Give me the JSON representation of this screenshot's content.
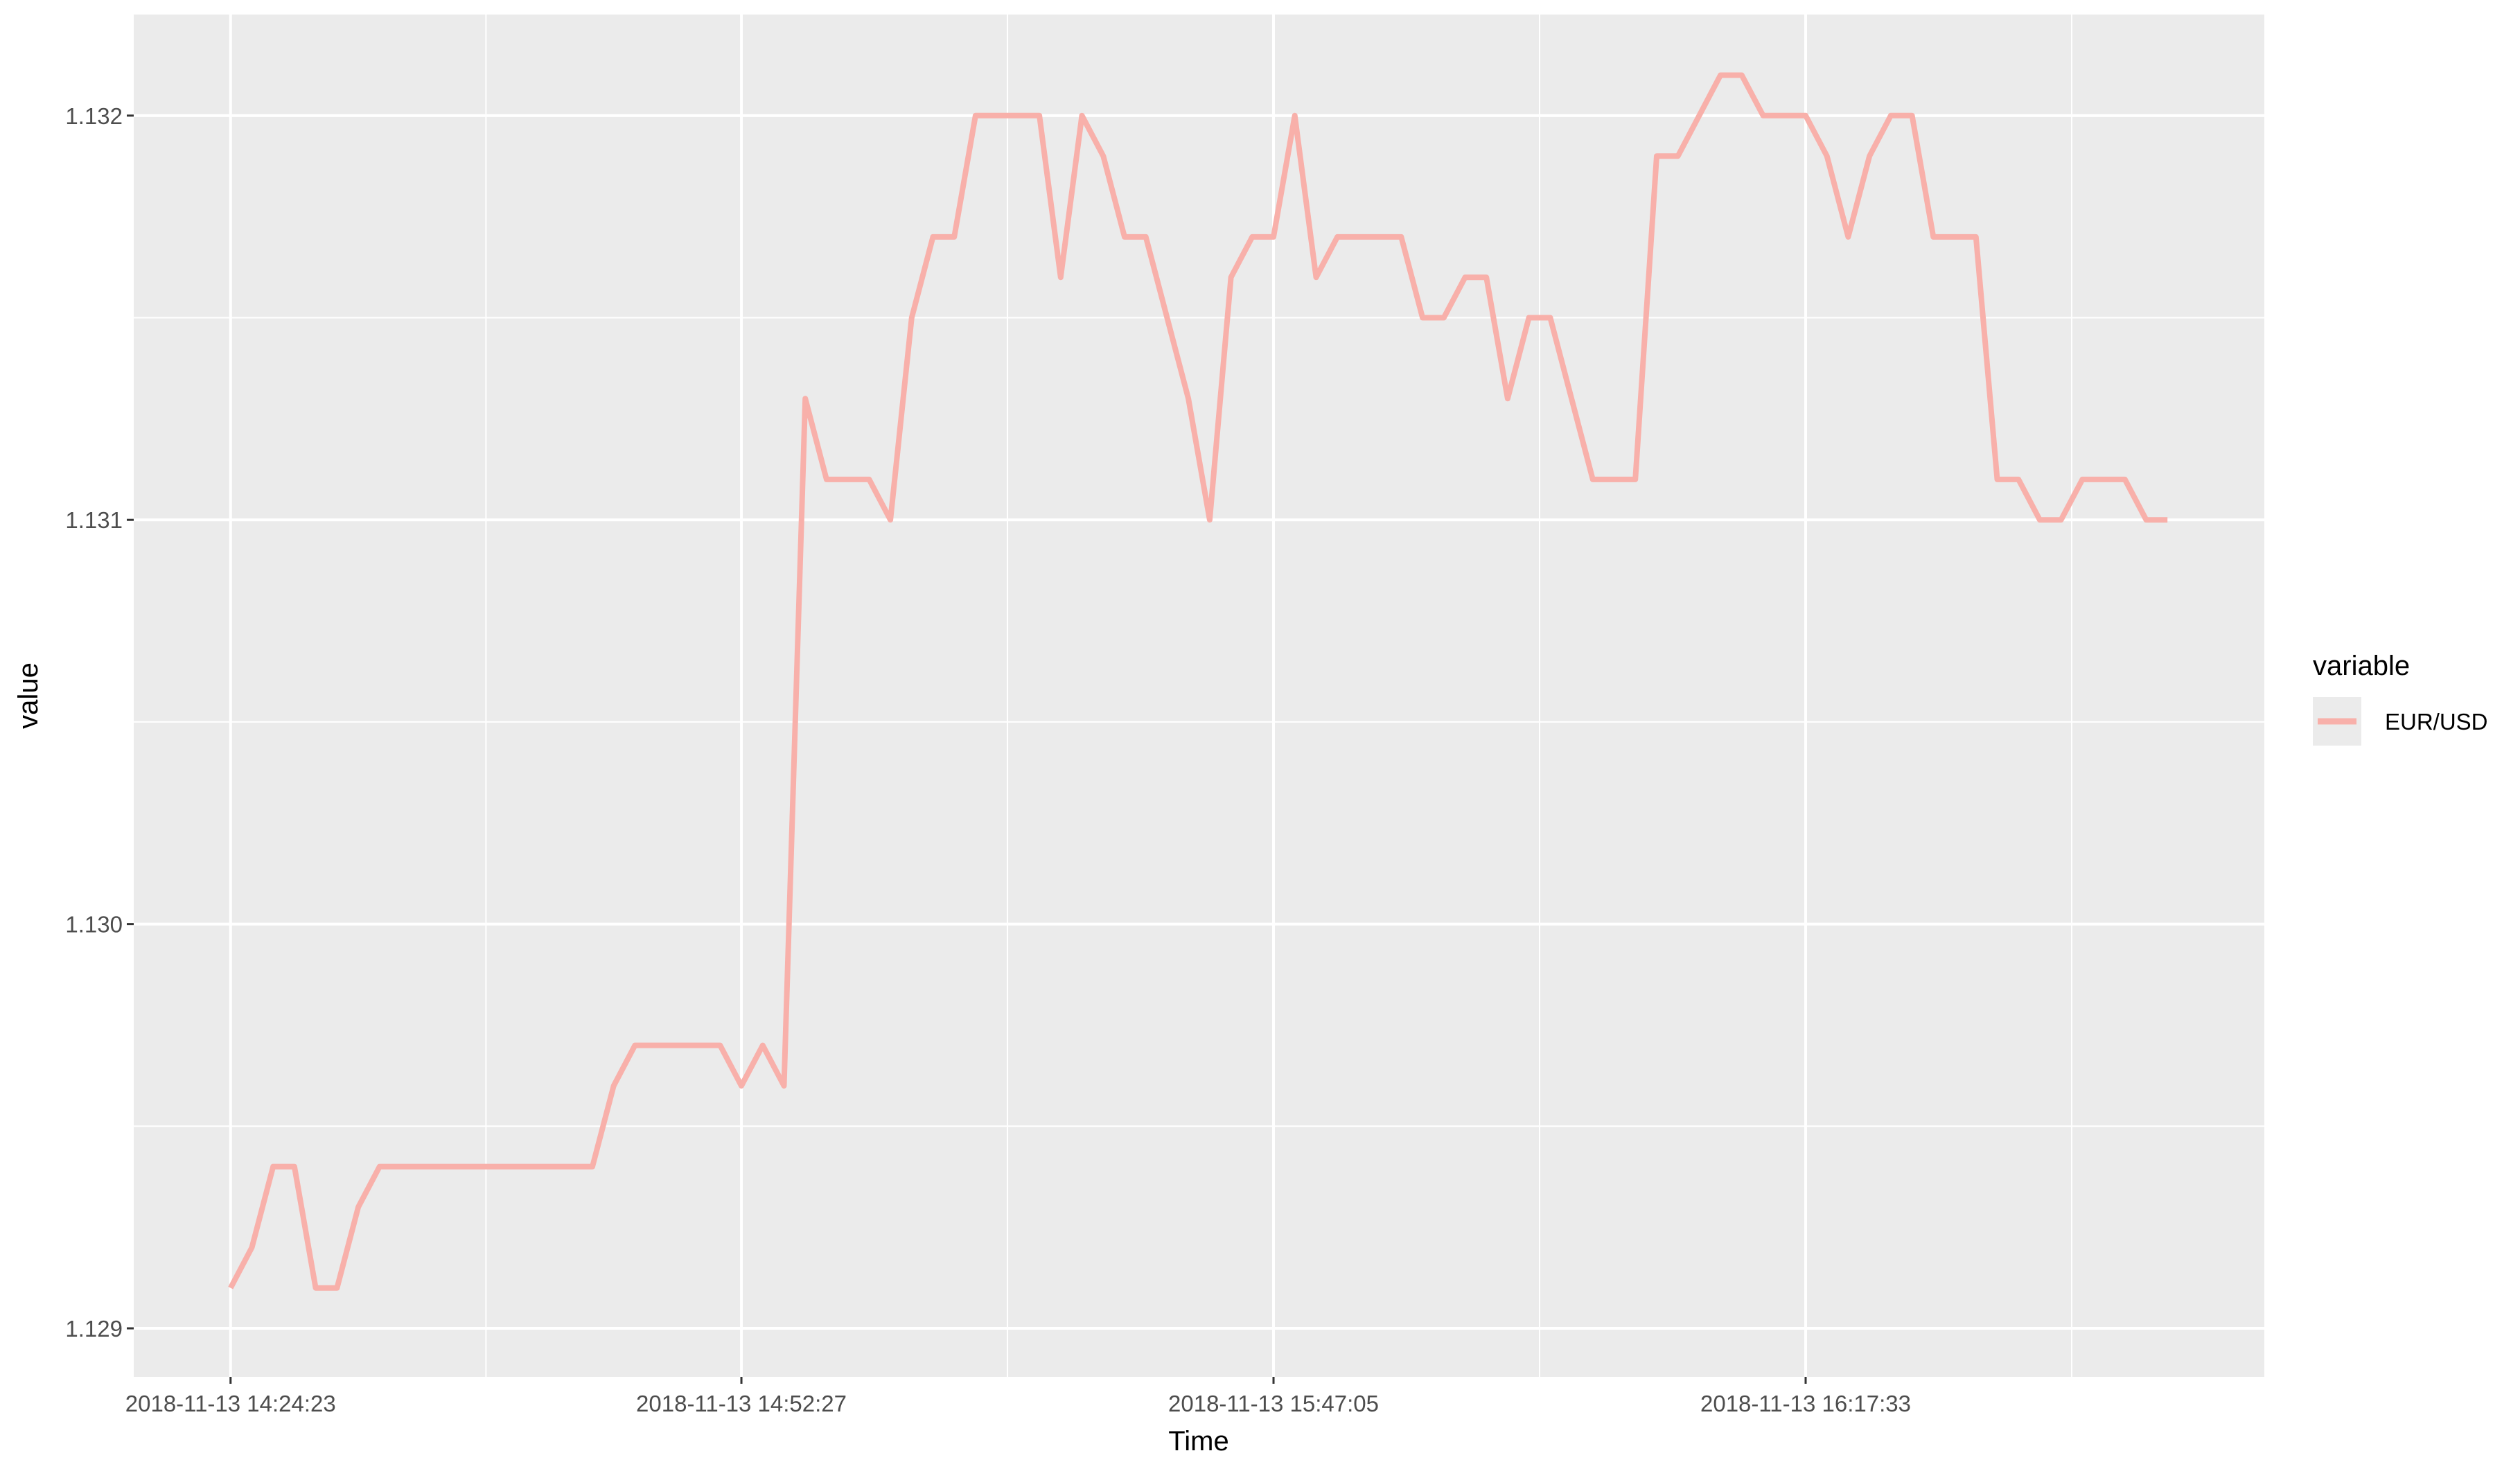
{
  "chart_data": {
    "type": "line",
    "title": "",
    "xlabel": "Time",
    "ylabel": "value",
    "ylim": [
      1.12888,
      1.13225
    ],
    "y_ticks": [
      1.129,
      1.13,
      1.131,
      1.132
    ],
    "y_tick_labels": [
      "1.129",
      "1.130",
      "1.131",
      "1.132"
    ],
    "x_tick_indices": [
      0,
      24,
      49,
      74
    ],
    "x_tick_labels": [
      "2018-11-13 14:24:23",
      "2018-11-13 14:52:27",
      "2018-11-13 15:47:05",
      "2018-11-13 16:17:33"
    ],
    "grid": true,
    "legend": {
      "title": "variable",
      "position": "right"
    },
    "series": [
      {
        "name": "EUR/USD",
        "color": "#f8b0aa",
        "values": [
          1.1291,
          1.1292,
          1.1294,
          1.1294,
          1.1291,
          1.1291,
          1.1293,
          1.1294,
          1.1294,
          1.1294,
          1.1294,
          1.1294,
          1.1294,
          1.1294,
          1.1294,
          1.1294,
          1.1294,
          1.1294,
          1.1296,
          1.1297,
          1.1297,
          1.1297,
          1.1297,
          1.1297,
          1.1296,
          1.1297,
          1.1296,
          1.1313,
          1.1311,
          1.1311,
          1.1311,
          1.131,
          1.1315,
          1.1317,
          1.1317,
          1.132,
          1.132,
          1.132,
          1.132,
          1.1316,
          1.132,
          1.1319,
          1.1317,
          1.1317,
          1.1315,
          1.1313,
          1.131,
          1.1316,
          1.1317,
          1.1317,
          1.132,
          1.1316,
          1.1317,
          1.1317,
          1.1317,
          1.1317,
          1.1315,
          1.1315,
          1.1316,
          1.1316,
          1.1313,
          1.1315,
          1.1315,
          1.1313,
          1.1311,
          1.1311,
          1.1311,
          1.1319,
          1.1319,
          1.132,
          1.1321,
          1.1321,
          1.132,
          1.132,
          1.132,
          1.1319,
          1.1317,
          1.1319,
          1.132,
          1.132,
          1.1317,
          1.1317,
          1.1317,
          1.1311,
          1.1311,
          1.131,
          1.131,
          1.1311,
          1.1311,
          1.1311,
          1.131,
          1.131
        ]
      }
    ]
  }
}
